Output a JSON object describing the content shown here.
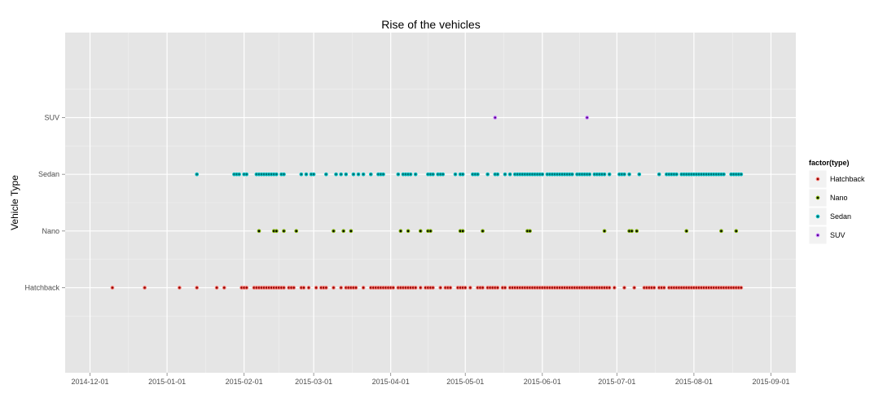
{
  "chart_data": {
    "type": "scatter",
    "title": "Rise of the vehicles",
    "xlabel": "",
    "ylabel": "Vehicle Type",
    "x_axis_type": "date",
    "xlim": [
      "2014-11-21",
      "2015-09-11"
    ],
    "x_ticks": [
      "2014-12-01",
      "2015-01-01",
      "2015-02-01",
      "2015-03-01",
      "2015-04-01",
      "2015-05-01",
      "2015-06-01",
      "2015-07-01",
      "2015-08-01",
      "2015-09-01"
    ],
    "categories": [
      "Hatchback",
      "Nano",
      "Sedan",
      "SUV"
    ],
    "grid": true,
    "legend": {
      "title": "factor(type)",
      "placement": "right",
      "entries": [
        {
          "name": "Hatchback",
          "color": "#F8766D"
        },
        {
          "name": "Nano",
          "color": "#7CAE00"
        },
        {
          "name": "Sedan",
          "color": "#00BFC4"
        },
        {
          "name": "SUV",
          "color": "#C77CFF"
        }
      ]
    },
    "point_fill": {
      "Hatchback": "#8B0000",
      "Nano": "#000000",
      "Sedan": "#006D6D",
      "SUV": "#5A0090"
    },
    "series": [
      {
        "name": "Hatchback",
        "color": "#F8766D",
        "x": [
          "2014-12-10",
          "2014-12-23",
          "2015-01-06",
          "2015-01-13",
          "2015-01-21",
          "2015-01-24",
          "2015-01-31",
          "2015-02-01",
          "2015-02-02",
          "2015-02-05",
          "2015-02-06",
          "2015-02-07",
          "2015-02-08",
          "2015-02-09",
          "2015-02-10",
          "2015-02-11",
          "2015-02-12",
          "2015-02-13",
          "2015-02-14",
          "2015-02-15",
          "2015-02-16",
          "2015-02-17",
          "2015-02-19",
          "2015-02-20",
          "2015-02-21",
          "2015-02-24",
          "2015-02-25",
          "2015-02-27",
          "2015-03-02",
          "2015-03-04",
          "2015-03-05",
          "2015-03-06",
          "2015-03-09",
          "2015-03-12",
          "2015-03-14",
          "2015-03-15",
          "2015-03-16",
          "2015-03-17",
          "2015-03-18",
          "2015-03-21",
          "2015-03-24",
          "2015-03-25",
          "2015-03-26",
          "2015-03-27",
          "2015-03-28",
          "2015-03-29",
          "2015-03-30",
          "2015-03-31",
          "2015-04-01",
          "2015-04-02",
          "2015-04-04",
          "2015-04-05",
          "2015-04-06",
          "2015-04-07",
          "2015-04-08",
          "2015-04-09",
          "2015-04-10",
          "2015-04-11",
          "2015-04-13",
          "2015-04-15",
          "2015-04-16",
          "2015-04-17",
          "2015-04-18",
          "2015-04-21",
          "2015-04-23",
          "2015-04-24",
          "2015-04-25",
          "2015-04-28",
          "2015-04-29",
          "2015-04-30",
          "2015-05-01",
          "2015-05-03",
          "2015-05-06",
          "2015-05-07",
          "2015-05-08",
          "2015-05-10",
          "2015-05-11",
          "2015-05-12",
          "2015-05-13",
          "2015-05-14",
          "2015-05-16",
          "2015-05-17",
          "2015-05-19",
          "2015-05-20",
          "2015-05-21",
          "2015-05-22",
          "2015-05-23",
          "2015-05-24",
          "2015-05-25",
          "2015-05-26",
          "2015-05-27",
          "2015-05-28",
          "2015-05-29",
          "2015-05-30",
          "2015-05-31",
          "2015-06-01",
          "2015-06-02",
          "2015-06-03",
          "2015-06-04",
          "2015-06-05",
          "2015-06-06",
          "2015-06-07",
          "2015-06-08",
          "2015-06-09",
          "2015-06-10",
          "2015-06-11",
          "2015-06-12",
          "2015-06-13",
          "2015-06-14",
          "2015-06-15",
          "2015-06-16",
          "2015-06-17",
          "2015-06-18",
          "2015-06-19",
          "2015-06-20",
          "2015-06-21",
          "2015-06-22",
          "2015-06-23",
          "2015-06-24",
          "2015-06-25",
          "2015-06-26",
          "2015-06-27",
          "2015-06-28",
          "2015-06-30",
          "2015-07-04",
          "2015-07-08",
          "2015-07-12",
          "2015-07-13",
          "2015-07-14",
          "2015-07-15",
          "2015-07-16",
          "2015-07-18",
          "2015-07-19",
          "2015-07-20",
          "2015-07-22",
          "2015-07-23",
          "2015-07-24",
          "2015-07-25",
          "2015-07-26",
          "2015-07-27",
          "2015-07-28",
          "2015-07-29",
          "2015-07-30",
          "2015-07-31",
          "2015-08-01",
          "2015-08-02",
          "2015-08-03",
          "2015-08-04",
          "2015-08-05",
          "2015-08-06",
          "2015-08-07",
          "2015-08-08",
          "2015-08-09",
          "2015-08-10",
          "2015-08-11",
          "2015-08-12",
          "2015-08-13",
          "2015-08-14",
          "2015-08-15",
          "2015-08-16",
          "2015-08-17",
          "2015-08-18",
          "2015-08-19",
          "2015-08-20"
        ]
      },
      {
        "name": "Nano",
        "color": "#7CAE00",
        "x": [
          "2015-02-07",
          "2015-02-13",
          "2015-02-14",
          "2015-02-17",
          "2015-02-22",
          "2015-03-09",
          "2015-03-13",
          "2015-03-16",
          "2015-04-05",
          "2015-04-08",
          "2015-04-13",
          "2015-04-16",
          "2015-04-17",
          "2015-04-29",
          "2015-04-30",
          "2015-05-08",
          "2015-05-26",
          "2015-05-27",
          "2015-06-26",
          "2015-07-06",
          "2015-07-07",
          "2015-07-09",
          "2015-07-29",
          "2015-08-12",
          "2015-08-18"
        ]
      },
      {
        "name": "Sedan",
        "color": "#00BFC4",
        "x": [
          "2015-01-13",
          "2015-01-28",
          "2015-01-29",
          "2015-01-30",
          "2015-02-01",
          "2015-02-02",
          "2015-02-06",
          "2015-02-07",
          "2015-02-08",
          "2015-02-09",
          "2015-02-10",
          "2015-02-11",
          "2015-02-12",
          "2015-02-13",
          "2015-02-14",
          "2015-02-16",
          "2015-02-17",
          "2015-02-24",
          "2015-02-26",
          "2015-02-28",
          "2015-03-01",
          "2015-03-06",
          "2015-03-10",
          "2015-03-12",
          "2015-03-14",
          "2015-03-17",
          "2015-03-19",
          "2015-03-21",
          "2015-03-24",
          "2015-03-27",
          "2015-03-28",
          "2015-03-29",
          "2015-04-04",
          "2015-04-06",
          "2015-04-07",
          "2015-04-08",
          "2015-04-09",
          "2015-04-11",
          "2015-04-16",
          "2015-04-17",
          "2015-04-18",
          "2015-04-20",
          "2015-04-21",
          "2015-04-22",
          "2015-04-27",
          "2015-04-29",
          "2015-04-30",
          "2015-05-04",
          "2015-05-05",
          "2015-05-06",
          "2015-05-10",
          "2015-05-13",
          "2015-05-14",
          "2015-05-17",
          "2015-05-19",
          "2015-05-21",
          "2015-05-22",
          "2015-05-23",
          "2015-05-24",
          "2015-05-25",
          "2015-05-26",
          "2015-05-27",
          "2015-05-28",
          "2015-05-29",
          "2015-05-30",
          "2015-05-31",
          "2015-06-01",
          "2015-06-03",
          "2015-06-04",
          "2015-06-05",
          "2015-06-06",
          "2015-06-07",
          "2015-06-08",
          "2015-06-09",
          "2015-06-10",
          "2015-06-11",
          "2015-06-12",
          "2015-06-13",
          "2015-06-15",
          "2015-06-16",
          "2015-06-17",
          "2015-06-18",
          "2015-06-19",
          "2015-06-20",
          "2015-06-22",
          "2015-06-23",
          "2015-06-24",
          "2015-06-25",
          "2015-06-26",
          "2015-06-28",
          "2015-07-02",
          "2015-07-03",
          "2015-07-04",
          "2015-07-06",
          "2015-07-10",
          "2015-07-18",
          "2015-07-21",
          "2015-07-22",
          "2015-07-23",
          "2015-07-24",
          "2015-07-25",
          "2015-07-27",
          "2015-07-28",
          "2015-07-29",
          "2015-07-30",
          "2015-07-31",
          "2015-08-01",
          "2015-08-02",
          "2015-08-03",
          "2015-08-04",
          "2015-08-05",
          "2015-08-06",
          "2015-08-07",
          "2015-08-08",
          "2015-08-09",
          "2015-08-10",
          "2015-08-11",
          "2015-08-12",
          "2015-08-13",
          "2015-08-16",
          "2015-08-17",
          "2015-08-18",
          "2015-08-19",
          "2015-08-20"
        ]
      },
      {
        "name": "SUV",
        "color": "#C77CFF",
        "x": [
          "2015-05-13",
          "2015-06-19"
        ]
      }
    ]
  }
}
